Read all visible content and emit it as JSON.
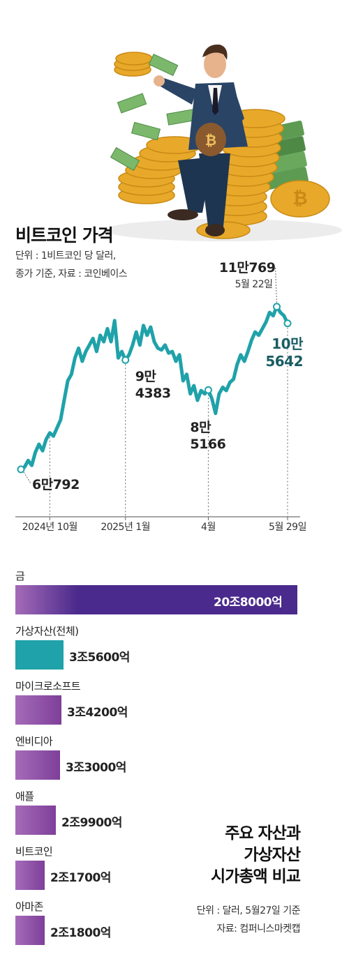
{
  "line_section": {
    "title": "비트코인 가격",
    "note_line1": "단위 : 1비트코인 당 달러,",
    "note_line2": "종가 기준, 자료 : 코인베이스"
  },
  "bar_section": {
    "title_line1": "주요 자산과",
    "title_line2": "가상자산",
    "title_line3": "시가총액 비교",
    "note_line1": "단위 : 달러, 5월27일 기준",
    "note_line2": "자료: 컴퍼니스마켓캡"
  },
  "colors": {
    "line": "#1FA2A9",
    "bitcoin_annotation": "#1A5E64",
    "bar_purple_dark": "#4A2A8C",
    "bar_purple_light": "#A56BB8",
    "bar_teal": "#1FA2A9"
  },
  "chart_data": [
    {
      "type": "line",
      "title": "비트코인 가격",
      "x_tick_labels": [
        "2024년 10월",
        "2025년 1월",
        "4월",
        "5월 29일"
      ],
      "series": [
        {
          "values": [
            60792,
            61500,
            63500,
            62000,
            66000,
            68500,
            66500,
            70000,
            72000,
            71000,
            73500,
            76000,
            82000,
            88000,
            90000,
            95000,
            98000,
            94000,
            97000,
            99000,
            101000,
            97000,
            102000,
            100000,
            104000,
            100000,
            106500,
            95000,
            97000,
            94383,
            96000,
            99000,
            103000,
            99000,
            105000,
            102000,
            104500,
            100000,
            98000,
            97500,
            99000,
            96500,
            97000,
            94000,
            96000,
            88000,
            90000,
            84000,
            86500,
            82000,
            85000,
            84000,
            85166,
            82500,
            78000,
            84000,
            86000,
            85000,
            87500,
            88500,
            93000,
            96000,
            94000,
            97000,
            100500,
            103000,
            102000,
            104000,
            106000,
            109000,
            108000,
            110769,
            109000,
            108000,
            105642
          ]
        }
      ],
      "annotations": [
        {
          "label_line1": "6만792",
          "label_line2": "",
          "value": 60792
        },
        {
          "label_line1": "9만",
          "label_line2": "4383",
          "value": 94383
        },
        {
          "label_line1": "8만",
          "label_line2": "5166",
          "value": 85166
        },
        {
          "label_line1": "11만769",
          "label_line2": "5월 22일",
          "value": 110769
        },
        {
          "label_line1": "10만",
          "label_line2": "5642",
          "value": 105642
        }
      ],
      "ylim": [
        55000,
        115000
      ]
    },
    {
      "type": "bar",
      "title": "주요 자산과 가상자산 시가총액 비교",
      "categories": [
        "금",
        "가상자산(전체)",
        "마이크로소프트",
        "엔비디아",
        "애플",
        "비트코인",
        "아마존"
      ],
      "values": [
        208000,
        35600,
        34200,
        33000,
        29900,
        21700,
        21800
      ],
      "value_labels": [
        "20조8000억",
        "3조5600억",
        "3조4200억",
        "3조3000억",
        "2조9900억",
        "2조1700억",
        "2조1800억"
      ],
      "unit": "억 달러"
    }
  ]
}
